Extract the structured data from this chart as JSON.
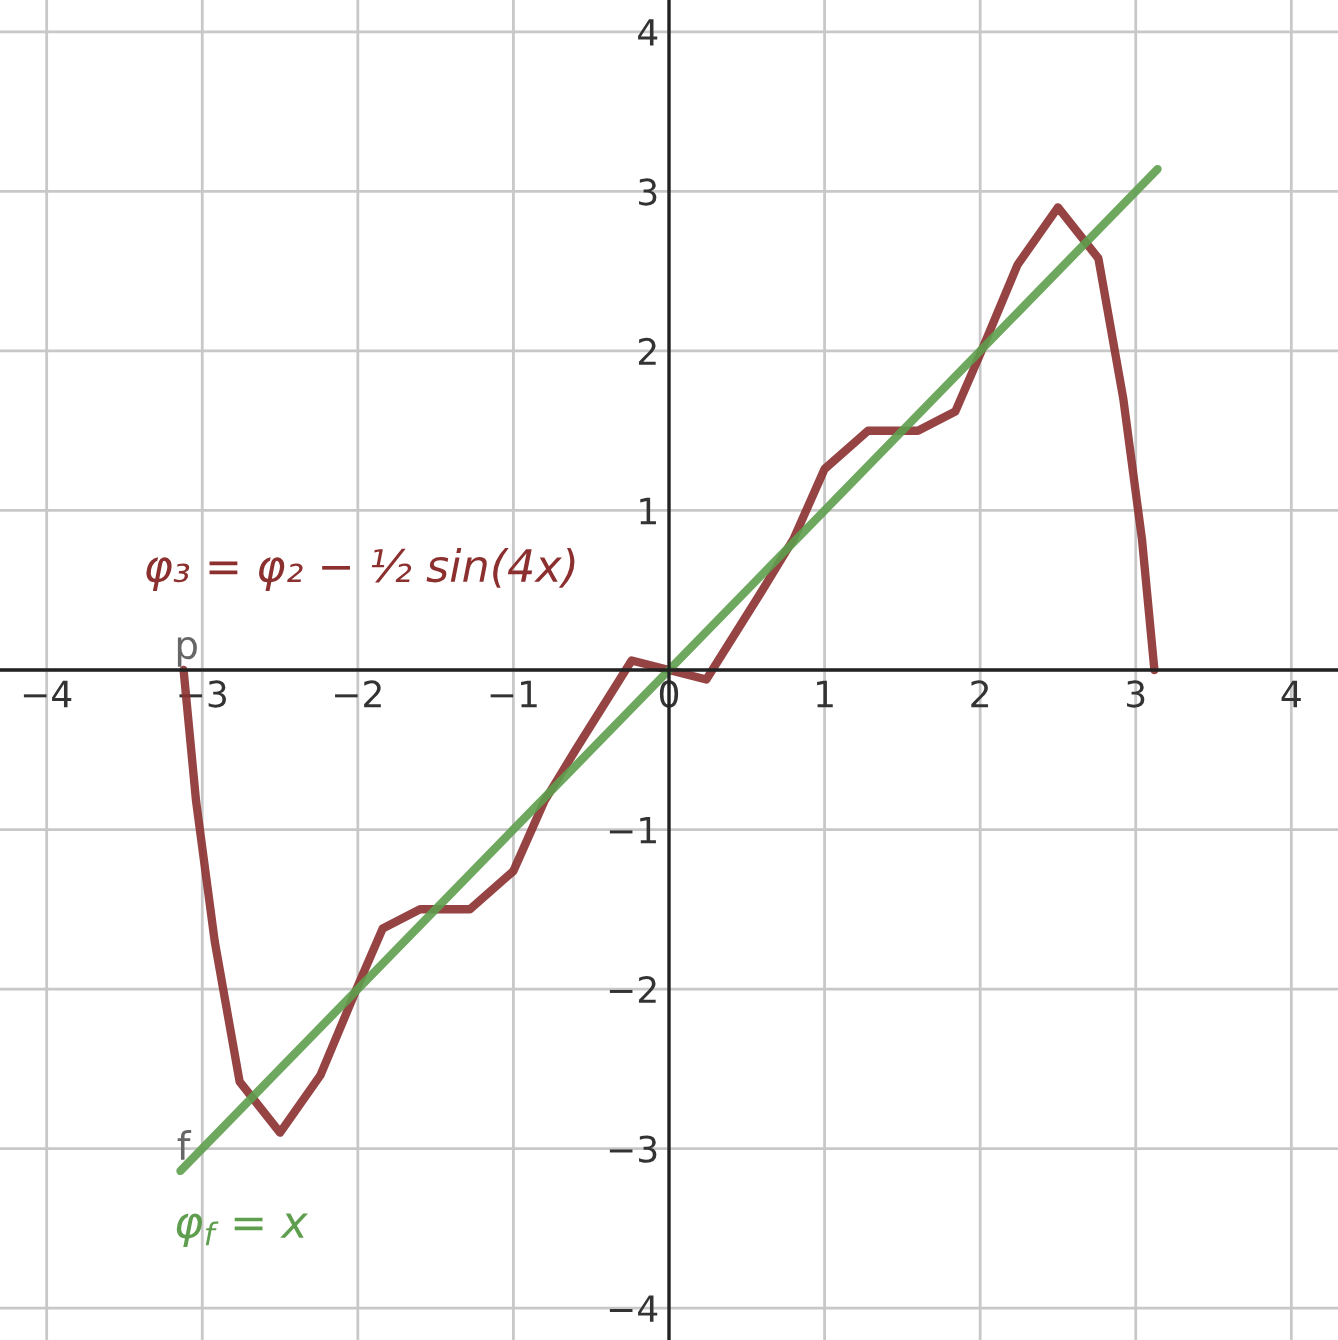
{
  "chart_data": {
    "type": "line",
    "series": [
      {
        "name": "p",
        "color": "#8b2f2f",
        "x": [
          -3.12,
          -3.04,
          -2.92,
          -2.76,
          -2.5,
          -2.24,
          -2.0,
          -1.84,
          -1.6,
          -1.28,
          -1.0,
          -0.8,
          -0.6,
          -0.24,
          0,
          0.24,
          0.6,
          0.8,
          1.0,
          1.28,
          1.6,
          1.84,
          2.0,
          2.24,
          2.5,
          2.76,
          2.92,
          3.04,
          3.12
        ],
        "values": [
          0,
          -0.82,
          -1.7,
          -2.58,
          -2.9,
          -2.54,
          -1.98,
          -1.62,
          -1.5,
          -1.5,
          -1.26,
          -0.82,
          -0.5,
          0.06,
          0,
          -0.06,
          0.5,
          0.82,
          1.26,
          1.5,
          1.5,
          1.62,
          1.98,
          2.54,
          2.9,
          2.58,
          1.7,
          0.82,
          0
        ]
      },
      {
        "name": "f",
        "color": "#5e9e4e",
        "x": [
          -3.14,
          3.14
        ],
        "values": [
          -3.14,
          3.14
        ]
      }
    ],
    "annotations": [
      "φ₃ = φ₂ − ½ sin(4x)",
      "φ$_{f}$ = x"
    ],
    "xlim": [
      -4.3,
      4.3
    ],
    "ylim": [
      -4.2,
      4.2
    ],
    "xticks": [
      -4,
      -3,
      -2,
      -1,
      {
        "value": 0,
        "label": "0"
      },
      1,
      2,
      3,
      4
    ],
    "yticks": [
      -4,
      -3,
      -2,
      -1,
      {
        "value": 0,
        "label": null
      },
      1,
      2,
      3,
      4
    ],
    "grid": true,
    "marker": "none",
    "line_style": "solid"
  }
}
